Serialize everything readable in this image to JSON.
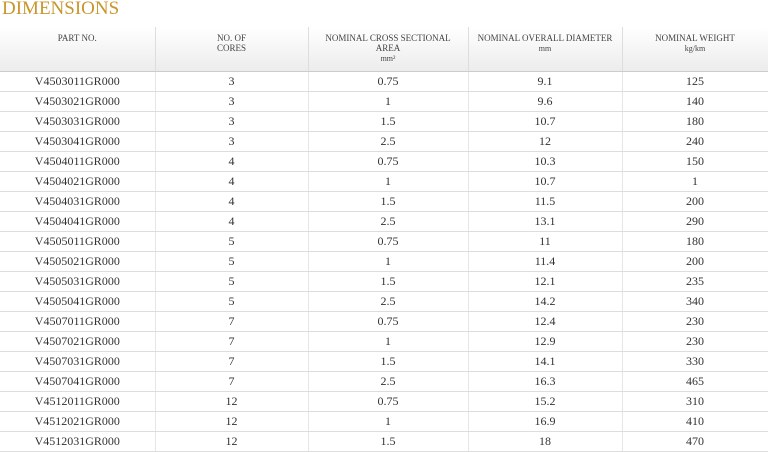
{
  "title": "DIMENSIONS",
  "table": {
    "header": [
      {
        "label": "PART NO."
      },
      {
        "label": "NO. OF CORES"
      },
      {
        "label": "NOMINAL CROSS SECTIONAL AREA",
        "unit": "mm²"
      },
      {
        "label": "NOMINAL OVERALL DIAMETER",
        "unit": "mm"
      },
      {
        "label": "NOMINAL WEIGHT",
        "unit": "kg/km"
      }
    ],
    "rows": [
      [
        "V4503011GR000",
        3,
        0.75,
        9.1,
        125
      ],
      [
        "V4503021GR000",
        3,
        1,
        9.6,
        140
      ],
      [
        "V4503031GR000",
        3,
        1.5,
        10.7,
        180
      ],
      [
        "V4503041GR000",
        3,
        2.5,
        12,
        240
      ],
      [
        "V4504011GR000",
        4,
        0.75,
        10.3,
        150
      ],
      [
        "V4504021GR000",
        4,
        1,
        10.7,
        1
      ],
      [
        "V4504031GR000",
        4,
        1.5,
        11.5,
        200
      ],
      [
        "V4504041GR000",
        4,
        2.5,
        13.1,
        290
      ],
      [
        "V4505011GR000",
        5,
        0.75,
        11,
        180
      ],
      [
        "V4505021GR000",
        5,
        1,
        11.4,
        200
      ],
      [
        "V4505031GR000",
        5,
        1.5,
        12.1,
        235
      ],
      [
        "V4505041GR000",
        5,
        2.5,
        14.2,
        340
      ],
      [
        "V4507011GR000",
        7,
        0.75,
        12.4,
        230
      ],
      [
        "V4507021GR000",
        7,
        1,
        12.9,
        230
      ],
      [
        "V4507031GR000",
        7,
        1.5,
        14.1,
        330
      ],
      [
        "V4507041GR000",
        7,
        2.5,
        16.3,
        465
      ],
      [
        "V4512011GR000",
        12,
        0.75,
        15.2,
        310
      ],
      [
        "V4512021GR000",
        12,
        1,
        16.9,
        410
      ],
      [
        "V4512031GR000",
        12,
        1.5,
        18,
        470
      ]
    ]
  }
}
